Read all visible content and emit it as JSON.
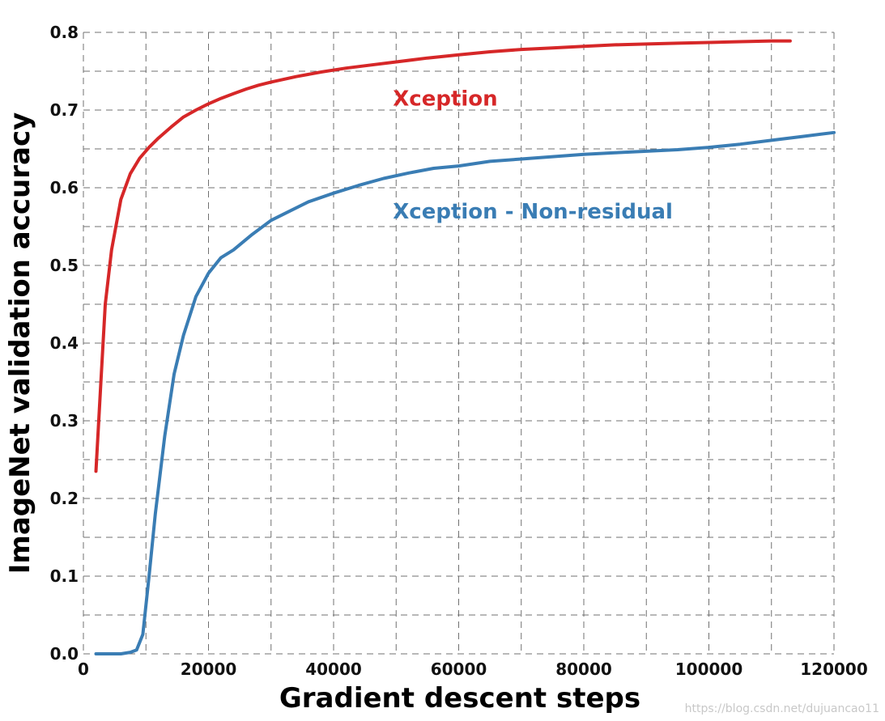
{
  "chart_data": {
    "type": "line",
    "title": "",
    "xlabel": "Gradient descent steps",
    "ylabel": "ImageNet validation accuracy",
    "xlim": [
      0,
      120000
    ],
    "ylim": [
      0.0,
      0.8
    ],
    "x_ticks": [
      0,
      20000,
      40000,
      60000,
      80000,
      100000,
      120000
    ],
    "x_tick_labels": [
      "0",
      "20000",
      "40000",
      "60000",
      "80000",
      "100000",
      "120000"
    ],
    "y_ticks": [
      0.0,
      0.1,
      0.2,
      0.3,
      0.4,
      0.5,
      0.6,
      0.7,
      0.8
    ],
    "y_tick_labels": [
      "0.0",
      "0.1",
      "0.2",
      "0.3",
      "0.4",
      "0.5",
      "0.6",
      "0.7",
      "0.8"
    ],
    "grid": true,
    "legend": "none",
    "series": [
      {
        "name": "Xception",
        "color": "#d62728",
        "x": [
          2000,
          2800,
          3500,
          4500,
          6000,
          7500,
          9000,
          10500,
          12000,
          14000,
          16000,
          18000,
          20000,
          22000,
          24000,
          26000,
          28000,
          30000,
          34000,
          38000,
          42000,
          46000,
          50000,
          55000,
          60000,
          65000,
          70000,
          75000,
          80000,
          85000,
          90000,
          95000,
          100000,
          105000,
          110000,
          113000
        ],
        "y": [
          0.235,
          0.35,
          0.45,
          0.52,
          0.585,
          0.618,
          0.638,
          0.652,
          0.664,
          0.678,
          0.691,
          0.7,
          0.708,
          0.715,
          0.721,
          0.727,
          0.732,
          0.736,
          0.743,
          0.749,
          0.754,
          0.758,
          0.762,
          0.767,
          0.771,
          0.775,
          0.778,
          0.78,
          0.782,
          0.784,
          0.785,
          0.786,
          0.787,
          0.788,
          0.789,
          0.789
        ]
      },
      {
        "name": "Xception - Non-residual",
        "color": "#3a7db4",
        "x": [
          2000,
          4000,
          6000,
          7500,
          8500,
          9500,
          10500,
          11500,
          13000,
          14500,
          16000,
          18000,
          20000,
          22000,
          24000,
          25500,
          27000,
          30000,
          33000,
          36000,
          40000,
          44000,
          48000,
          52000,
          56000,
          60000,
          65000,
          70000,
          75000,
          80000,
          85000,
          90000,
          95000,
          100000,
          105000,
          110000,
          115000,
          120000
        ],
        "y": [
          0.0,
          0.0,
          0.0,
          0.002,
          0.005,
          0.025,
          0.1,
          0.18,
          0.28,
          0.36,
          0.41,
          0.46,
          0.49,
          0.51,
          0.52,
          0.53,
          0.54,
          0.558,
          0.57,
          0.582,
          0.593,
          0.603,
          0.612,
          0.619,
          0.625,
          0.628,
          0.634,
          0.637,
          0.64,
          0.643,
          0.645,
          0.647,
          0.649,
          0.652,
          0.656,
          0.661,
          0.666,
          0.671
        ]
      }
    ],
    "annotations": [
      {
        "text": "Xception",
        "x": 50000,
        "y": 0.715,
        "color": "#d62728"
      },
      {
        "text": "Xception - Non-residual",
        "x": 50000,
        "y": 0.57,
        "color": "#3a7db4"
      }
    ]
  },
  "watermark": "https://blog.csdn.net/dujuancao11"
}
